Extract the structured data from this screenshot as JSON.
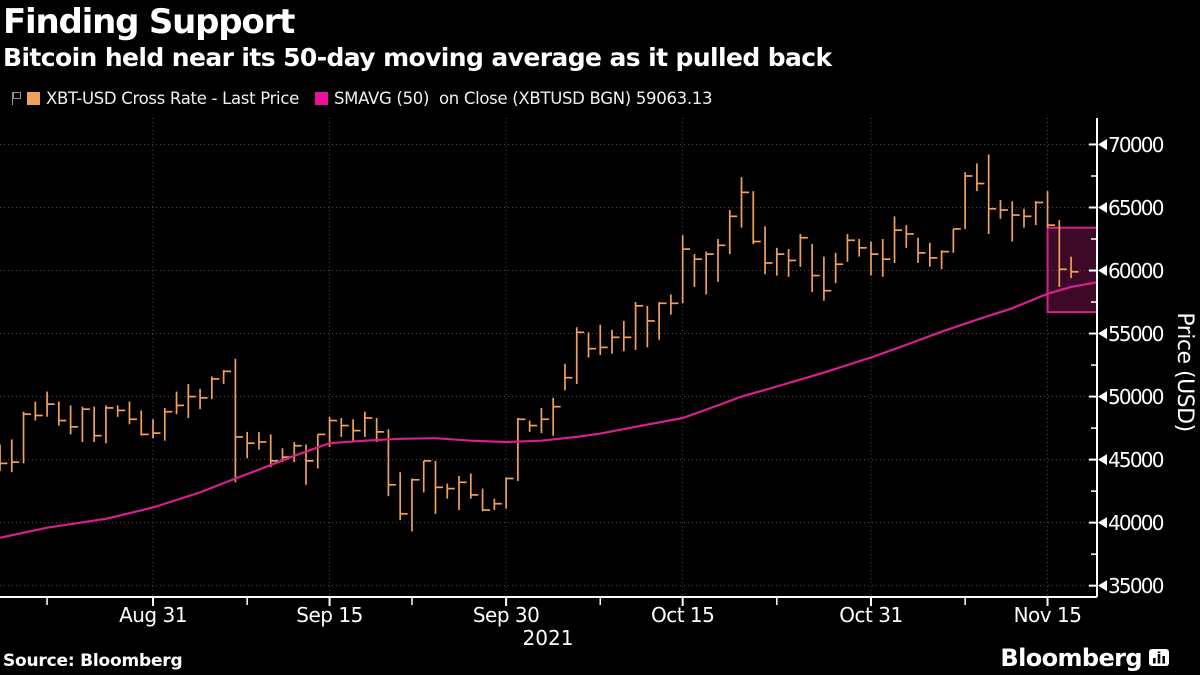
{
  "header": {
    "title": "Finding Support",
    "subtitle": "Bitcoin held near its 50-day moving average as it pulled back"
  },
  "legend": {
    "items": [
      {
        "label": "XBT-USD Cross Rate - Last Price",
        "swatch": "#f0a15c"
      },
      {
        "label": "SMAVG (50)  on Close (XBTUSD BGN) 59063.13",
        "swatch": "#ed109c"
      }
    ]
  },
  "footer": {
    "source": "Source: Bloomberg",
    "brand": "Bloomberg"
  },
  "chart_data": {
    "type": "ohlc-bar",
    "title": "Finding Support",
    "ylabel": "Price (USD)",
    "xlabel": "2021",
    "ylim": [
      34100,
      72100
    ],
    "y_ticks": [
      35000,
      40000,
      45000,
      50000,
      55000,
      60000,
      65000,
      70000
    ],
    "y_minor_ticks": [
      37500,
      42500,
      47500,
      52500,
      57500,
      62500,
      67500
    ],
    "grid": "dotted",
    "frequency": "daily",
    "start_label": "Aug 18 2021",
    "x_major_ticks": [
      {
        "label": "Aug 31",
        "index": 13
      },
      {
        "label": "Sep 15",
        "index": 28
      },
      {
        "label": "Sep 30",
        "index": 43
      },
      {
        "label": "Oct 15",
        "index": 58
      },
      {
        "label": "Oct 31",
        "index": 74
      },
      {
        "label": "Nov 15",
        "index": 89
      }
    ],
    "x_minor_tick_indices": [
      4,
      21,
      35,
      51,
      66,
      82
    ],
    "series": [
      {
        "name": "XBT-USD Cross Rate - Last Price",
        "type": "hlc_bars",
        "color": "#f0a15c",
        "bars_hlc": [
          [
            46200,
            44100,
            44700
          ],
          [
            46600,
            44000,
            44800
          ],
          [
            48800,
            44700,
            48600
          ],
          [
            49600,
            48100,
            48500
          ],
          [
            50400,
            48400,
            49400
          ],
          [
            49600,
            47700,
            48100
          ],
          [
            49300,
            47000,
            47600
          ],
          [
            49200,
            46400,
            49000
          ],
          [
            49200,
            46400,
            46900
          ],
          [
            49300,
            46300,
            49100
          ],
          [
            49300,
            48400,
            48900
          ],
          [
            49600,
            47800,
            48200
          ],
          [
            48900,
            46900,
            47000
          ],
          [
            48200,
            46700,
            47100
          ],
          [
            49100,
            46500,
            48800
          ],
          [
            50400,
            48600,
            49300
          ],
          [
            51000,
            48300,
            50000
          ],
          [
            50600,
            49000,
            49900
          ],
          [
            51600,
            49800,
            51400
          ],
          [
            52100,
            51000,
            52000
          ],
          [
            53000,
            43200,
            46800
          ],
          [
            47200,
            45100,
            46300
          ],
          [
            47200,
            45800,
            46400
          ],
          [
            47000,
            44400,
            44900
          ],
          [
            45900,
            44800,
            45200
          ],
          [
            46400,
            44800,
            46100
          ],
          [
            46200,
            43000,
            44900
          ],
          [
            47000,
            44300,
            47000
          ],
          [
            48400,
            46000,
            48100
          ],
          [
            48300,
            46800,
            47700
          ],
          [
            48200,
            46400,
            47300
          ],
          [
            48800,
            46800,
            48300
          ],
          [
            48300,
            46400,
            47200
          ],
          [
            47400,
            42100,
            43000
          ],
          [
            44000,
            40200,
            40700
          ],
          [
            43500,
            39300,
            43400
          ],
          [
            44900,
            42400,
            44900
          ],
          [
            44900,
            40700,
            42800
          ],
          [
            43100,
            41900,
            42700
          ],
          [
            43700,
            41000,
            43200
          ],
          [
            43900,
            41900,
            42200
          ],
          [
            42700,
            40900,
            41000
          ],
          [
            41900,
            41000,
            41500
          ],
          [
            43600,
            41100,
            43500
          ],
          [
            48300,
            43300,
            48200
          ],
          [
            48100,
            47200,
            47700
          ],
          [
            49100,
            47100,
            48200
          ],
          [
            49900,
            46900,
            49200
          ],
          [
            52600,
            50500,
            51500
          ],
          [
            55500,
            51000,
            55100
          ],
          [
            55100,
            53100,
            53800
          ],
          [
            55700,
            53300,
            53900
          ],
          [
            55300,
            53400,
            54700
          ],
          [
            56000,
            53600,
            54700
          ],
          [
            57500,
            53700,
            57200
          ],
          [
            57200,
            53900,
            56000
          ],
          [
            57500,
            54500,
            57400
          ],
          [
            58100,
            56500,
            57400
          ],
          [
            62800,
            57400,
            61700
          ],
          [
            61300,
            58700,
            60900
          ],
          [
            61500,
            58100,
            61300
          ],
          [
            62500,
            59100,
            62000
          ],
          [
            64800,
            61300,
            64300
          ],
          [
            67400,
            63400,
            66200
          ],
          [
            66300,
            62100,
            62300
          ],
          [
            63500,
            59700,
            60600
          ],
          [
            61800,
            59600,
            61300
          ],
          [
            61700,
            59500,
            60800
          ],
          [
            62900,
            60300,
            62600
          ],
          [
            62100,
            58300,
            59600
          ],
          [
            61100,
            57600,
            58400
          ],
          [
            61400,
            59000,
            60500
          ],
          [
            62900,
            60700,
            62400
          ],
          [
            62500,
            61100,
            61800
          ],
          [
            62300,
            59600,
            61300
          ],
          [
            62500,
            59500,
            60900
          ],
          [
            64300,
            60600,
            63200
          ],
          [
            63600,
            61800,
            62900
          ],
          [
            62600,
            60600,
            61400
          ],
          [
            62200,
            60300,
            61000
          ],
          [
            61600,
            60100,
            61500
          ],
          [
            63300,
            61400,
            63300
          ],
          [
            67800,
            63300,
            67500
          ],
          [
            68500,
            66300,
            66900
          ],
          [
            69200,
            62900,
            64900
          ],
          [
            65600,
            64100,
            64800
          ],
          [
            65500,
            62300,
            64400
          ],
          [
            64900,
            63400,
            64300
          ],
          [
            65500,
            63600,
            65400
          ],
          [
            66300,
            63400,
            63600
          ],
          [
            64000,
            58700,
            60100
          ],
          [
            61100,
            59400,
            59900
          ]
        ]
      },
      {
        "name": "SMAVG (50) on Close (XBTUSD BGN)",
        "type": "line",
        "color": "#d6218c",
        "last_value": 59063.13,
        "points": [
          [
            0,
            38800
          ],
          [
            4,
            39600
          ],
          [
            9,
            40300
          ],
          [
            13,
            41200
          ],
          [
            17,
            42400
          ],
          [
            20,
            43500
          ],
          [
            22,
            44200
          ],
          [
            25,
            45300
          ],
          [
            28,
            46300
          ],
          [
            31,
            46500
          ],
          [
            34,
            46650
          ],
          [
            37,
            46700
          ],
          [
            40,
            46500
          ],
          [
            43,
            46400
          ],
          [
            46,
            46500
          ],
          [
            49,
            46800
          ],
          [
            51,
            47060
          ],
          [
            54,
            47600
          ],
          [
            58,
            48300
          ],
          [
            61,
            49300
          ],
          [
            63,
            50000
          ],
          [
            66,
            50800
          ],
          [
            70,
            51900
          ],
          [
            74,
            53100
          ],
          [
            77,
            54100
          ],
          [
            80,
            55150
          ],
          [
            83,
            56100
          ],
          [
            86,
            57000
          ],
          [
            89,
            58150
          ],
          [
            91,
            58700
          ],
          [
            93.2,
            59063
          ]
        ]
      }
    ],
    "highlight_box": {
      "start_index": 89,
      "end_at_right_axis": true,
      "top": 63400,
      "bottom": 56700,
      "stroke": "#d6218c",
      "fill_alpha": 0.28
    }
  }
}
